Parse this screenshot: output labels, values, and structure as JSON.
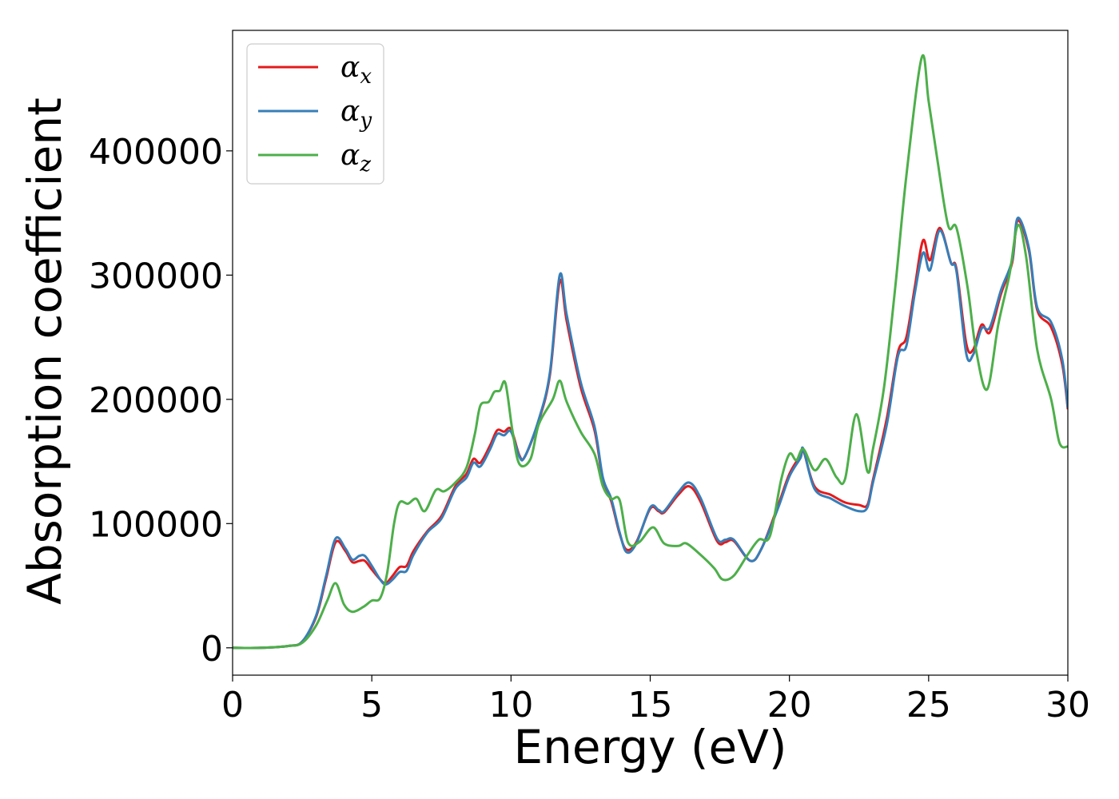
{
  "chart_data": {
    "type": "line",
    "xlabel": "Energy (eV)",
    "ylabel": "Absorption coefficient",
    "xlim": [
      0,
      30
    ],
    "ylim": [
      -22000,
      497000
    ],
    "xticks": [
      0,
      5,
      10,
      15,
      20,
      25,
      30
    ],
    "yticks": [
      0,
      100000,
      200000,
      300000,
      400000
    ],
    "grid": false,
    "legend_position": "upper-left",
    "series": [
      {
        "name": "αx",
        "name_base": "α",
        "name_sub": "x",
        "color": "#e41a1c",
        "points": [
          [
            0,
            0
          ],
          [
            1,
            0
          ],
          [
            2,
            1500
          ],
          [
            2.5,
            5000
          ],
          [
            3,
            25000
          ],
          [
            3.35,
            55000
          ],
          [
            3.7,
            85000
          ],
          [
            4.05,
            78000
          ],
          [
            4.3,
            69000
          ],
          [
            4.55,
            70000
          ],
          [
            4.75,
            70000
          ],
          [
            5.0,
            63000
          ],
          [
            5.3,
            55000
          ],
          [
            5.5,
            52000
          ],
          [
            5.75,
            58000
          ],
          [
            6.0,
            65000
          ],
          [
            6.25,
            66000
          ],
          [
            6.5,
            78000
          ],
          [
            7.0,
            94000
          ],
          [
            7.5,
            106000
          ],
          [
            8.0,
            130000
          ],
          [
            8.4,
            140000
          ],
          [
            8.65,
            152000
          ],
          [
            8.9,
            149000
          ],
          [
            9.25,
            163000
          ],
          [
            9.5,
            175000
          ],
          [
            9.75,
            174000
          ],
          [
            10.0,
            176000
          ],
          [
            10.3,
            155000
          ],
          [
            10.5,
            154000
          ],
          [
            11.0,
            183000
          ],
          [
            11.4,
            220000
          ],
          [
            11.75,
            295000
          ],
          [
            12.0,
            263000
          ],
          [
            12.5,
            210000
          ],
          [
            13.0,
            175000
          ],
          [
            13.3,
            135000
          ],
          [
            13.6,
            118000
          ],
          [
            13.9,
            92000
          ],
          [
            14.15,
            79000
          ],
          [
            14.5,
            85000
          ],
          [
            15.0,
            112000
          ],
          [
            15.3,
            110000
          ],
          [
            15.5,
            109000
          ],
          [
            16.0,
            123000
          ],
          [
            16.4,
            130000
          ],
          [
            16.8,
            118000
          ],
          [
            17.4,
            86000
          ],
          [
            17.7,
            85000
          ],
          [
            18.0,
            86000
          ],
          [
            18.6,
            70000
          ],
          [
            19.0,
            80000
          ],
          [
            19.6,
            115000
          ],
          [
            20.0,
            140000
          ],
          [
            20.4,
            155000
          ],
          [
            20.5,
            159000
          ],
          [
            20.9,
            130000
          ],
          [
            21.5,
            123000
          ],
          [
            22.0,
            117000
          ],
          [
            22.5,
            115000
          ],
          [
            22.8,
            115000
          ],
          [
            23.0,
            135000
          ],
          [
            23.5,
            185000
          ],
          [
            23.9,
            238000
          ],
          [
            24.2,
            250000
          ],
          [
            24.5,
            290000
          ],
          [
            24.8,
            328000
          ],
          [
            25.05,
            312000
          ],
          [
            25.4,
            338000
          ],
          [
            25.8,
            310000
          ],
          [
            26.0,
            305000
          ],
          [
            26.35,
            245000
          ],
          [
            26.6,
            240000
          ],
          [
            26.9,
            260000
          ],
          [
            27.2,
            254000
          ],
          [
            27.6,
            285000
          ],
          [
            28.0,
            310000
          ],
          [
            28.2,
            344000
          ],
          [
            28.6,
            320000
          ],
          [
            28.9,
            272000
          ],
          [
            29.4,
            258000
          ],
          [
            29.8,
            228000
          ],
          [
            30,
            192000
          ]
        ]
      },
      {
        "name": "αy",
        "name_base": "α",
        "name_sub": "y",
        "color": "#377eb8",
        "points": [
          [
            0,
            0
          ],
          [
            1,
            0
          ],
          [
            2,
            1500
          ],
          [
            2.5,
            5000
          ],
          [
            3,
            26000
          ],
          [
            3.35,
            57000
          ],
          [
            3.7,
            88000
          ],
          [
            4.05,
            80000
          ],
          [
            4.3,
            71000
          ],
          [
            4.55,
            74000
          ],
          [
            4.75,
            74000
          ],
          [
            5.0,
            66000
          ],
          [
            5.3,
            55000
          ],
          [
            5.5,
            51000
          ],
          [
            5.75,
            55000
          ],
          [
            6.0,
            61000
          ],
          [
            6.25,
            62000
          ],
          [
            6.5,
            75000
          ],
          [
            7.0,
            93000
          ],
          [
            7.5,
            104000
          ],
          [
            8.0,
            128000
          ],
          [
            8.4,
            137000
          ],
          [
            8.65,
            149000
          ],
          [
            8.9,
            146000
          ],
          [
            9.25,
            160000
          ],
          [
            9.5,
            172000
          ],
          [
            9.75,
            171000
          ],
          [
            10.0,
            174000
          ],
          [
            10.3,
            154000
          ],
          [
            10.5,
            154000
          ],
          [
            11.0,
            184000
          ],
          [
            11.4,
            222000
          ],
          [
            11.75,
            300000
          ],
          [
            12.0,
            268000
          ],
          [
            12.5,
            214000
          ],
          [
            13.0,
            178000
          ],
          [
            13.3,
            137000
          ],
          [
            13.6,
            120000
          ],
          [
            13.9,
            93000
          ],
          [
            14.15,
            77000
          ],
          [
            14.5,
            84000
          ],
          [
            15.0,
            113000
          ],
          [
            15.3,
            111000
          ],
          [
            15.5,
            110000
          ],
          [
            16.0,
            125000
          ],
          [
            16.4,
            133000
          ],
          [
            16.8,
            121000
          ],
          [
            17.4,
            88000
          ],
          [
            17.7,
            87000
          ],
          [
            18.0,
            87000
          ],
          [
            18.6,
            70000
          ],
          [
            19.0,
            80000
          ],
          [
            19.6,
            113000
          ],
          [
            20.0,
            138000
          ],
          [
            20.4,
            153000
          ],
          [
            20.5,
            160000
          ],
          [
            20.9,
            128000
          ],
          [
            21.5,
            120000
          ],
          [
            22.0,
            114000
          ],
          [
            22.5,
            110000
          ],
          [
            22.8,
            113000
          ],
          [
            23.0,
            133000
          ],
          [
            23.5,
            180000
          ],
          [
            23.9,
            235000
          ],
          [
            24.2,
            243000
          ],
          [
            24.5,
            285000
          ],
          [
            24.8,
            318000
          ],
          [
            25.05,
            304000
          ],
          [
            25.4,
            336000
          ],
          [
            25.8,
            310000
          ],
          [
            26.0,
            303000
          ],
          [
            26.35,
            237000
          ],
          [
            26.6,
            236000
          ],
          [
            26.9,
            257000
          ],
          [
            27.2,
            258000
          ],
          [
            27.6,
            288000
          ],
          [
            28.0,
            312000
          ],
          [
            28.2,
            346000
          ],
          [
            28.6,
            322000
          ],
          [
            28.9,
            274000
          ],
          [
            29.4,
            262000
          ],
          [
            29.8,
            232000
          ],
          [
            30,
            193000
          ]
        ]
      },
      {
        "name": "αz",
        "name_base": "α",
        "name_sub": "z",
        "color": "#4daf4a",
        "points": [
          [
            0,
            0
          ],
          [
            1,
            0
          ],
          [
            2,
            1500
          ],
          [
            2.5,
            4000
          ],
          [
            3,
            18000
          ],
          [
            3.4,
            38000
          ],
          [
            3.7,
            52000
          ],
          [
            4.0,
            35000
          ],
          [
            4.3,
            29000
          ],
          [
            4.7,
            33000
          ],
          [
            5.0,
            38000
          ],
          [
            5.3,
            40000
          ],
          [
            5.55,
            60000
          ],
          [
            5.8,
            100000
          ],
          [
            6.0,
            117000
          ],
          [
            6.3,
            116000
          ],
          [
            6.6,
            120000
          ],
          [
            6.9,
            110000
          ],
          [
            7.3,
            127000
          ],
          [
            7.6,
            126000
          ],
          [
            8.0,
            133000
          ],
          [
            8.4,
            145000
          ],
          [
            8.7,
            172000
          ],
          [
            8.9,
            195000
          ],
          [
            9.2,
            198000
          ],
          [
            9.4,
            206000
          ],
          [
            9.6,
            207000
          ],
          [
            9.8,
            213000
          ],
          [
            10.05,
            175000
          ],
          [
            10.3,
            148000
          ],
          [
            10.7,
            152000
          ],
          [
            11.0,
            180000
          ],
          [
            11.5,
            200000
          ],
          [
            11.75,
            215000
          ],
          [
            12.0,
            198000
          ],
          [
            12.5,
            174000
          ],
          [
            13.0,
            156000
          ],
          [
            13.3,
            130000
          ],
          [
            13.6,
            120000
          ],
          [
            13.9,
            119000
          ],
          [
            14.2,
            85000
          ],
          [
            14.6,
            85000
          ],
          [
            15.1,
            97000
          ],
          [
            15.5,
            84000
          ],
          [
            16.0,
            82000
          ],
          [
            16.3,
            84000
          ],
          [
            16.8,
            75000
          ],
          [
            17.3,
            64000
          ],
          [
            17.6,
            55000
          ],
          [
            18.0,
            58000
          ],
          [
            18.5,
            75000
          ],
          [
            18.9,
            87000
          ],
          [
            19.3,
            90000
          ],
          [
            19.7,
            135000
          ],
          [
            20.0,
            156000
          ],
          [
            20.25,
            151000
          ],
          [
            20.5,
            160000
          ],
          [
            20.9,
            143000
          ],
          [
            21.3,
            152000
          ],
          [
            21.7,
            137000
          ],
          [
            22.0,
            136000
          ],
          [
            22.4,
            188000
          ],
          [
            22.8,
            142000
          ],
          [
            23.0,
            160000
          ],
          [
            23.4,
            210000
          ],
          [
            23.8,
            290000
          ],
          [
            24.2,
            380000
          ],
          [
            24.75,
            475000
          ],
          [
            25.0,
            440000
          ],
          [
            25.3,
            395000
          ],
          [
            25.7,
            340000
          ],
          [
            26.0,
            338000
          ],
          [
            26.4,
            290000
          ],
          [
            26.7,
            240000
          ],
          [
            27.1,
            208000
          ],
          [
            27.5,
            260000
          ],
          [
            27.9,
            300000
          ],
          [
            28.2,
            340000
          ],
          [
            28.5,
            315000
          ],
          [
            28.9,
            240000
          ],
          [
            29.4,
            200000
          ],
          [
            29.7,
            165000
          ],
          [
            30,
            162000
          ]
        ]
      }
    ]
  }
}
